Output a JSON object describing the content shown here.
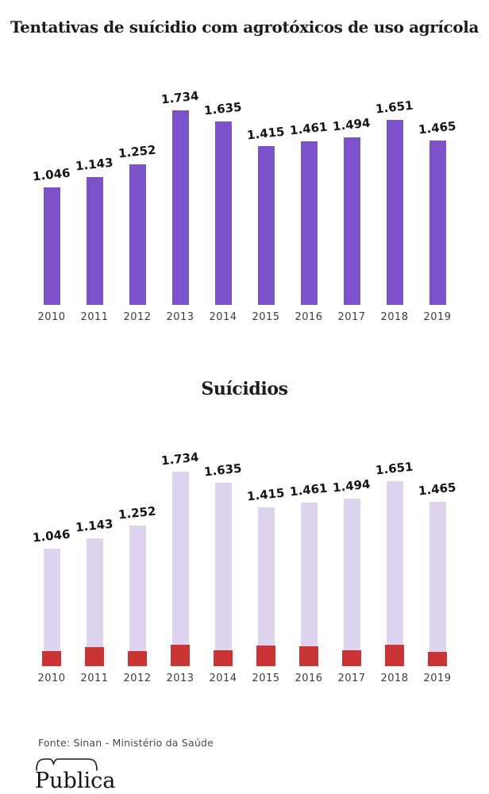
{
  "page": {
    "background": "#ffffff"
  },
  "chart_data": [
    {
      "type": "bar",
      "title": "Tentativas de suícidio com agrotóxicos de uso agrícola",
      "categories": [
        "2010",
        "2011",
        "2012",
        "2013",
        "2014",
        "2015",
        "2016",
        "2017",
        "2018",
        "2019"
      ],
      "values": [
        1046,
        1143,
        1252,
        1734,
        1635,
        1415,
        1461,
        1494,
        1651,
        1465
      ],
      "value_labels": [
        "1.046",
        "1.143",
        "1.252",
        "1.734",
        "1.635",
        "1.415",
        "1.461",
        "1.494",
        "1.651",
        "1.465"
      ],
      "bar_color": "#7b52c9",
      "xlabel": "",
      "ylabel": "",
      "ylim": [
        0,
        1850
      ],
      "grid": false,
      "legend_position": "none"
    },
    {
      "type": "bar",
      "title": "Suícidios",
      "categories": [
        "2010",
        "2011",
        "2012",
        "2013",
        "2014",
        "2015",
        "2016",
        "2017",
        "2018",
        "2019"
      ],
      "series": [
        {
          "name": "tentativas-fundo",
          "values": [
            1046,
            1143,
            1252,
            1734,
            1635,
            1415,
            1461,
            1494,
            1651,
            1465
          ],
          "value_labels": [
            "1.046",
            "1.143",
            "1.252",
            "1.734",
            "1.635",
            "1.415",
            "1.461",
            "1.494",
            "1.651",
            "1.465"
          ],
          "color": "#ded4ef",
          "labeled": true
        },
        {
          "name": "suicidios",
          "values": [
            135,
            170,
            135,
            190,
            145,
            185,
            180,
            140,
            190,
            130
          ],
          "color": "#cb3434",
          "labeled": false,
          "estimated": true
        }
      ],
      "xlabel": "",
      "ylabel": "",
      "ylim": [
        0,
        1850
      ],
      "grid": false,
      "legend_position": "none"
    }
  ],
  "footer": {
    "source": "Fonte: Sinan - Ministério da Saúde",
    "logo_text": "Publica"
  }
}
